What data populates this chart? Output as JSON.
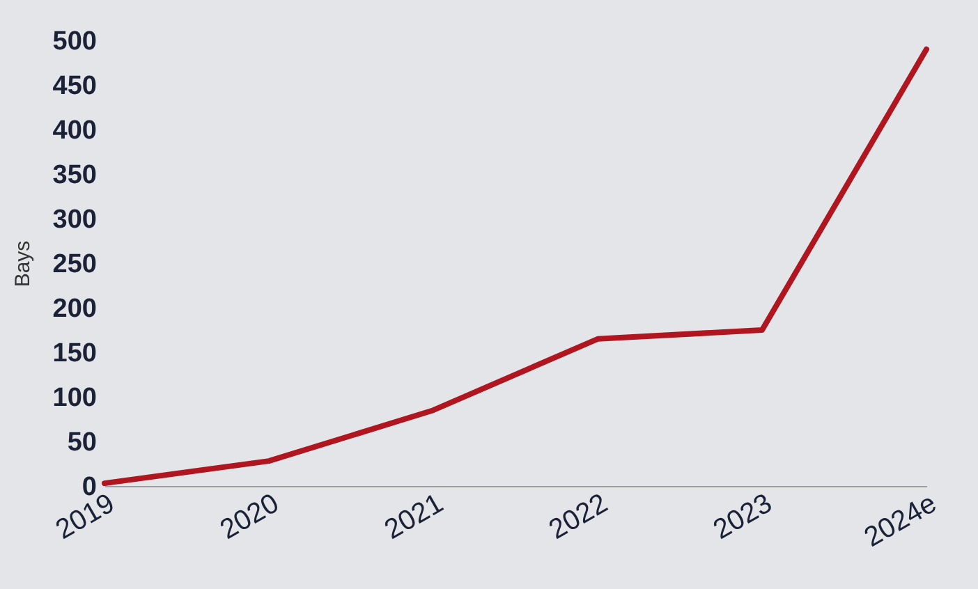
{
  "chart_data": {
    "type": "line",
    "ylabel": "Bays",
    "categories": [
      "2019",
      "2020",
      "2021",
      "2022",
      "2023",
      "2024e"
    ],
    "series": [
      {
        "color": "#b0161f",
        "values": [
          3,
          28,
          85,
          165,
          175,
          490
        ]
      }
    ],
    "ylim": [
      0,
      500
    ],
    "yticks": [
      0,
      50,
      100,
      150,
      200,
      250,
      300,
      350,
      400,
      450,
      500
    ],
    "grid": false,
    "legend": false,
    "marker": "none",
    "line_style": "solid"
  }
}
